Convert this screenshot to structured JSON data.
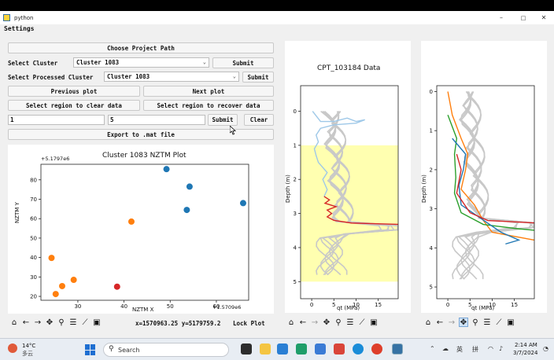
{
  "window": {
    "title": "python",
    "minimize": "–",
    "maximize": "□",
    "close": "✕"
  },
  "menu": {
    "settings": "Settings"
  },
  "controls": {
    "choose_project": "Choose Project Path",
    "select_cluster_label": "Select Cluster",
    "cluster_value": "Cluster 1083",
    "submit": "Submit",
    "select_processed_label": "Select Processed Cluster",
    "processed_value": "Cluster 1083",
    "previous_plot": "Previous plot",
    "next_plot": "Next plot",
    "clear_region": "Select region to clear data",
    "recover_region": "Select region to recover data",
    "entry1": "1",
    "entry2": "5",
    "submit2": "Submit",
    "clear": "Clear",
    "export": "Export to .mat file"
  },
  "scatter": {
    "title": "Cluster 1083 NZTM Plot",
    "x_offset": "+1.5709e6",
    "y_offset": "+5.1797e6",
    "xlabel": "NZTM X",
    "ylabel": "NZTM Y",
    "x_ticks": [
      "30",
      "40",
      "50",
      "60"
    ],
    "y_ticks": [
      "20",
      "30",
      "40",
      "50",
      "60",
      "70",
      "80"
    ]
  },
  "status": {
    "coords": "x=1570963.25 y=5179759.2",
    "lock_plot": "Lock Plot"
  },
  "cpt": {
    "title": "CPT_103184 Data",
    "ylabel": "Depth (m)",
    "xlabel": "qt (MPa)",
    "x_ticks": [
      "0",
      "5",
      "10",
      "15"
    ],
    "y_ticks": [
      "0",
      "1",
      "2",
      "3",
      "4",
      "5"
    ]
  },
  "cluster": {
    "ylabel": "Depth (m)",
    "xlabel": "qt (MPa)",
    "x_ticks": [
      "0",
      "5",
      "10",
      "15"
    ],
    "y_ticks": [
      "0",
      "1",
      "2",
      "3",
      "4",
      "5"
    ]
  },
  "taskbar": {
    "temp": "14°C",
    "weather": "多云",
    "search": "Search",
    "ime": "英",
    "ime2": "拼",
    "time": "2:14 AM",
    "date": "3/7/2024"
  },
  "colors": {
    "blue": "#1f77b4",
    "orange": "#ff7f0e",
    "red": "#d62728",
    "green": "#2ca02c",
    "lightblue": "#9ec8e8",
    "highlight": "#ffffb0"
  },
  "chart_data": [
    {
      "type": "scatter",
      "title": "Cluster 1083 NZTM Plot",
      "xlabel": "NZTM X",
      "ylabel": "NZTM Y",
      "x_offset": "+1.5709e6",
      "y_offset": "+5.1797e6",
      "xlim": [
        22,
        67
      ],
      "ylim": [
        18,
        88
      ],
      "x_ticks": [
        30,
        40,
        50,
        60
      ],
      "y_ticks": [
        20,
        30,
        40,
        50,
        60,
        70,
        80
      ],
      "points": [
        {
          "x": 49.2,
          "y": 85.5,
          "c": "blue"
        },
        {
          "x": 54.2,
          "y": 76.5,
          "c": "blue"
        },
        {
          "x": 53.6,
          "y": 64.5,
          "c": "blue"
        },
        {
          "x": 65.8,
          "y": 68.0,
          "c": "blue"
        },
        {
          "x": 41.6,
          "y": 58.5,
          "c": "orange"
        },
        {
          "x": 24.3,
          "y": 39.8,
          "c": "orange"
        },
        {
          "x": 29.1,
          "y": 28.5,
          "c": "orange"
        },
        {
          "x": 26.6,
          "y": 25.3,
          "c": "orange"
        },
        {
          "x": 25.2,
          "y": 21.2,
          "c": "orange"
        },
        {
          "x": 38.5,
          "y": 25.0,
          "c": "red"
        }
      ]
    },
    {
      "type": "line",
      "title": "CPT_103184 Data",
      "xlabel": "qt (MPa)",
      "ylabel": "Depth (m)",
      "xlim": [
        -2.5,
        19.5
      ],
      "ylim": [
        5.5,
        -0.75
      ],
      "highlight_depth": [
        1.0,
        5.0
      ],
      "series": [
        {
          "color": "lightblue",
          "points": [
            [
              0.2,
              0.0
            ],
            [
              2,
              0.3
            ],
            [
              5,
              0.3
            ],
            [
              8,
              0.2
            ],
            [
              10,
              0.3
            ],
            [
              12,
              0.25
            ],
            [
              10,
              0.35
            ],
            [
              5,
              0.4
            ],
            [
              2,
              0.5
            ],
            [
              1,
              0.7
            ],
            [
              1.5,
              0.9
            ],
            [
              0.6,
              1.1
            ],
            [
              1,
              1.3
            ],
            [
              1.5,
              1.5
            ],
            [
              3.5,
              1.8
            ],
            [
              2.5,
              2.0
            ],
            [
              3.5,
              2.3
            ],
            [
              2.8,
              2.5
            ]
          ]
        },
        {
          "color": "red",
          "points": [
            [
              2.8,
              2.5
            ],
            [
              4,
              2.6
            ],
            [
              3,
              2.7
            ],
            [
              5.5,
              2.8
            ],
            [
              3.5,
              2.9
            ],
            [
              4.5,
              3.0
            ],
            [
              3.5,
              3.1
            ],
            [
              5,
              3.2
            ],
            [
              9,
              3.28
            ],
            [
              19.5,
              3.32
            ]
          ]
        }
      ]
    },
    {
      "type": "line",
      "xlabel": "qt (MPa)",
      "ylabel": "Depth (m)",
      "xlim": [
        -2.5,
        19.5
      ],
      "ylim": [
        5.3,
        -0.15
      ],
      "series": [
        {
          "color": "orange",
          "points": [
            [
              0,
              0.0
            ],
            [
              1,
              0.6
            ],
            [
              3,
              1.2
            ],
            [
              4.5,
              1.6
            ],
            [
              4,
              2.0
            ],
            [
              3,
              2.5
            ],
            [
              6,
              2.9
            ],
            [
              8,
              3.3
            ],
            [
              10,
              3.6
            ],
            [
              19.5,
              3.8
            ]
          ]
        },
        {
          "color": "green",
          "points": [
            [
              0,
              0.6
            ],
            [
              2,
              1.2
            ],
            [
              1.5,
              1.6
            ],
            [
              1.8,
              2.2
            ],
            [
              1.5,
              2.6
            ],
            [
              3,
              3.1
            ],
            [
              8,
              3.4
            ],
            [
              15,
              3.5
            ],
            [
              19.5,
              3.55
            ]
          ]
        },
        {
          "color": "blue",
          "points": [
            [
              1,
              1.2
            ],
            [
              4,
              1.6
            ],
            [
              3.5,
              2.0
            ],
            [
              2.5,
              2.4
            ],
            [
              3,
              2.9
            ],
            [
              12,
              3.6
            ],
            [
              16,
              3.8
            ],
            [
              13,
              3.9
            ]
          ]
        },
        {
          "color": "red",
          "points": [
            [
              2,
              1.6
            ],
            [
              3,
              2.0
            ],
            [
              2,
              2.6
            ],
            [
              5,
              3.1
            ],
            [
              9,
              3.3
            ],
            [
              19.5,
              3.36
            ]
          ]
        }
      ]
    }
  ]
}
